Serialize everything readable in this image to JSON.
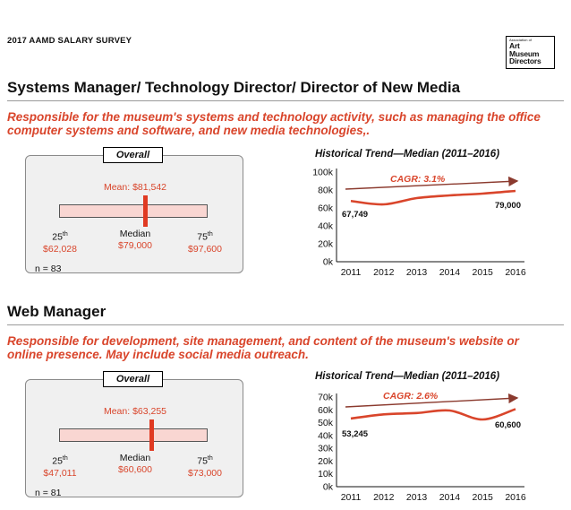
{
  "header": {
    "survey_title": "2017 AAMD SALARY SURVEY",
    "logo_line1": "Association of",
    "logo_line2": "Art",
    "logo_line3": "Museum",
    "logo_line4": "Directors"
  },
  "sections": [
    {
      "title": "Systems Manager/ Technology Director/ Director of New Media",
      "description": "Responsible for the museum's systems and technology activity, such as managing the office computer systems and software, and new media technologies,.",
      "overall": {
        "tab": "Overall",
        "mean_text": "Mean: $81,542",
        "p25_label": "25",
        "p25_value": "$62,028",
        "median_label": "Median",
        "median_value": "$79,000",
        "p75_label": "75",
        "p75_value": "$97,600",
        "ordinal_suffix": "th",
        "n_text": "n = 83"
      },
      "chart_title": "Historical Trend—Median (2011–2016)",
      "cagr_label": "CAGR: 3.1%",
      "start_label": "67,749",
      "end_label": "79,000"
    },
    {
      "title": "Web Manager",
      "description": "Responsible for development, site management, and content of the museum's website or online presence. May include social media outreach.",
      "overall": {
        "tab": "Overall",
        "mean_text": "Mean: $63,255",
        "p25_label": "25",
        "p25_value": "$47,011",
        "median_label": "Median",
        "median_value": "$60,600",
        "p75_label": "75",
        "p75_value": "$73,000",
        "ordinal_suffix": "th",
        "n_text": "n = 81"
      },
      "chart_title": "Historical Trend—Median (2011–2016)",
      "cagr_label": "CAGR: 2.6%",
      "start_label": "53,245",
      "end_label": "60,600"
    }
  ],
  "colors": {
    "accent": "#d9452b",
    "line": "#d9452b",
    "arrow": "#8b3a2e",
    "bar_fill": "#f9d6d2",
    "median_mark": "#e03a22"
  },
  "chart_data": [
    {
      "type": "line",
      "title": "Historical Trend—Median (2011–2016)",
      "categories": [
        "2011",
        "2012",
        "2013",
        "2014",
        "2015",
        "2016"
      ],
      "series": [
        {
          "values": [
            67749,
            64000,
            71000,
            74000,
            76000,
            79000
          ]
        }
      ],
      "ylim": [
        0,
        100000
      ],
      "yticks": [
        0,
        20000,
        40000,
        60000,
        80000,
        100000
      ],
      "ytick_labels": [
        "0k",
        "20k",
        "40k",
        "60k",
        "80k",
        "100k"
      ],
      "annotations": [
        "CAGR: 3.1%",
        "67,749",
        "79,000"
      ],
      "grid": false
    },
    {
      "type": "line",
      "title": "Historical Trend—Median (2011–2016)",
      "categories": [
        "2011",
        "2012",
        "2013",
        "2014",
        "2015",
        "2016"
      ],
      "series": [
        {
          "values": [
            53245,
            56500,
            57500,
            59500,
            52500,
            60600
          ]
        }
      ],
      "ylim": [
        0,
        70000
      ],
      "yticks": [
        0,
        10000,
        20000,
        30000,
        40000,
        50000,
        60000,
        70000
      ],
      "ytick_labels": [
        "0k",
        "10k",
        "20k",
        "30k",
        "40k",
        "50k",
        "60k",
        "70k"
      ],
      "annotations": [
        "CAGR: 2.6%",
        "53,245",
        "60,600"
      ],
      "grid": false
    }
  ]
}
